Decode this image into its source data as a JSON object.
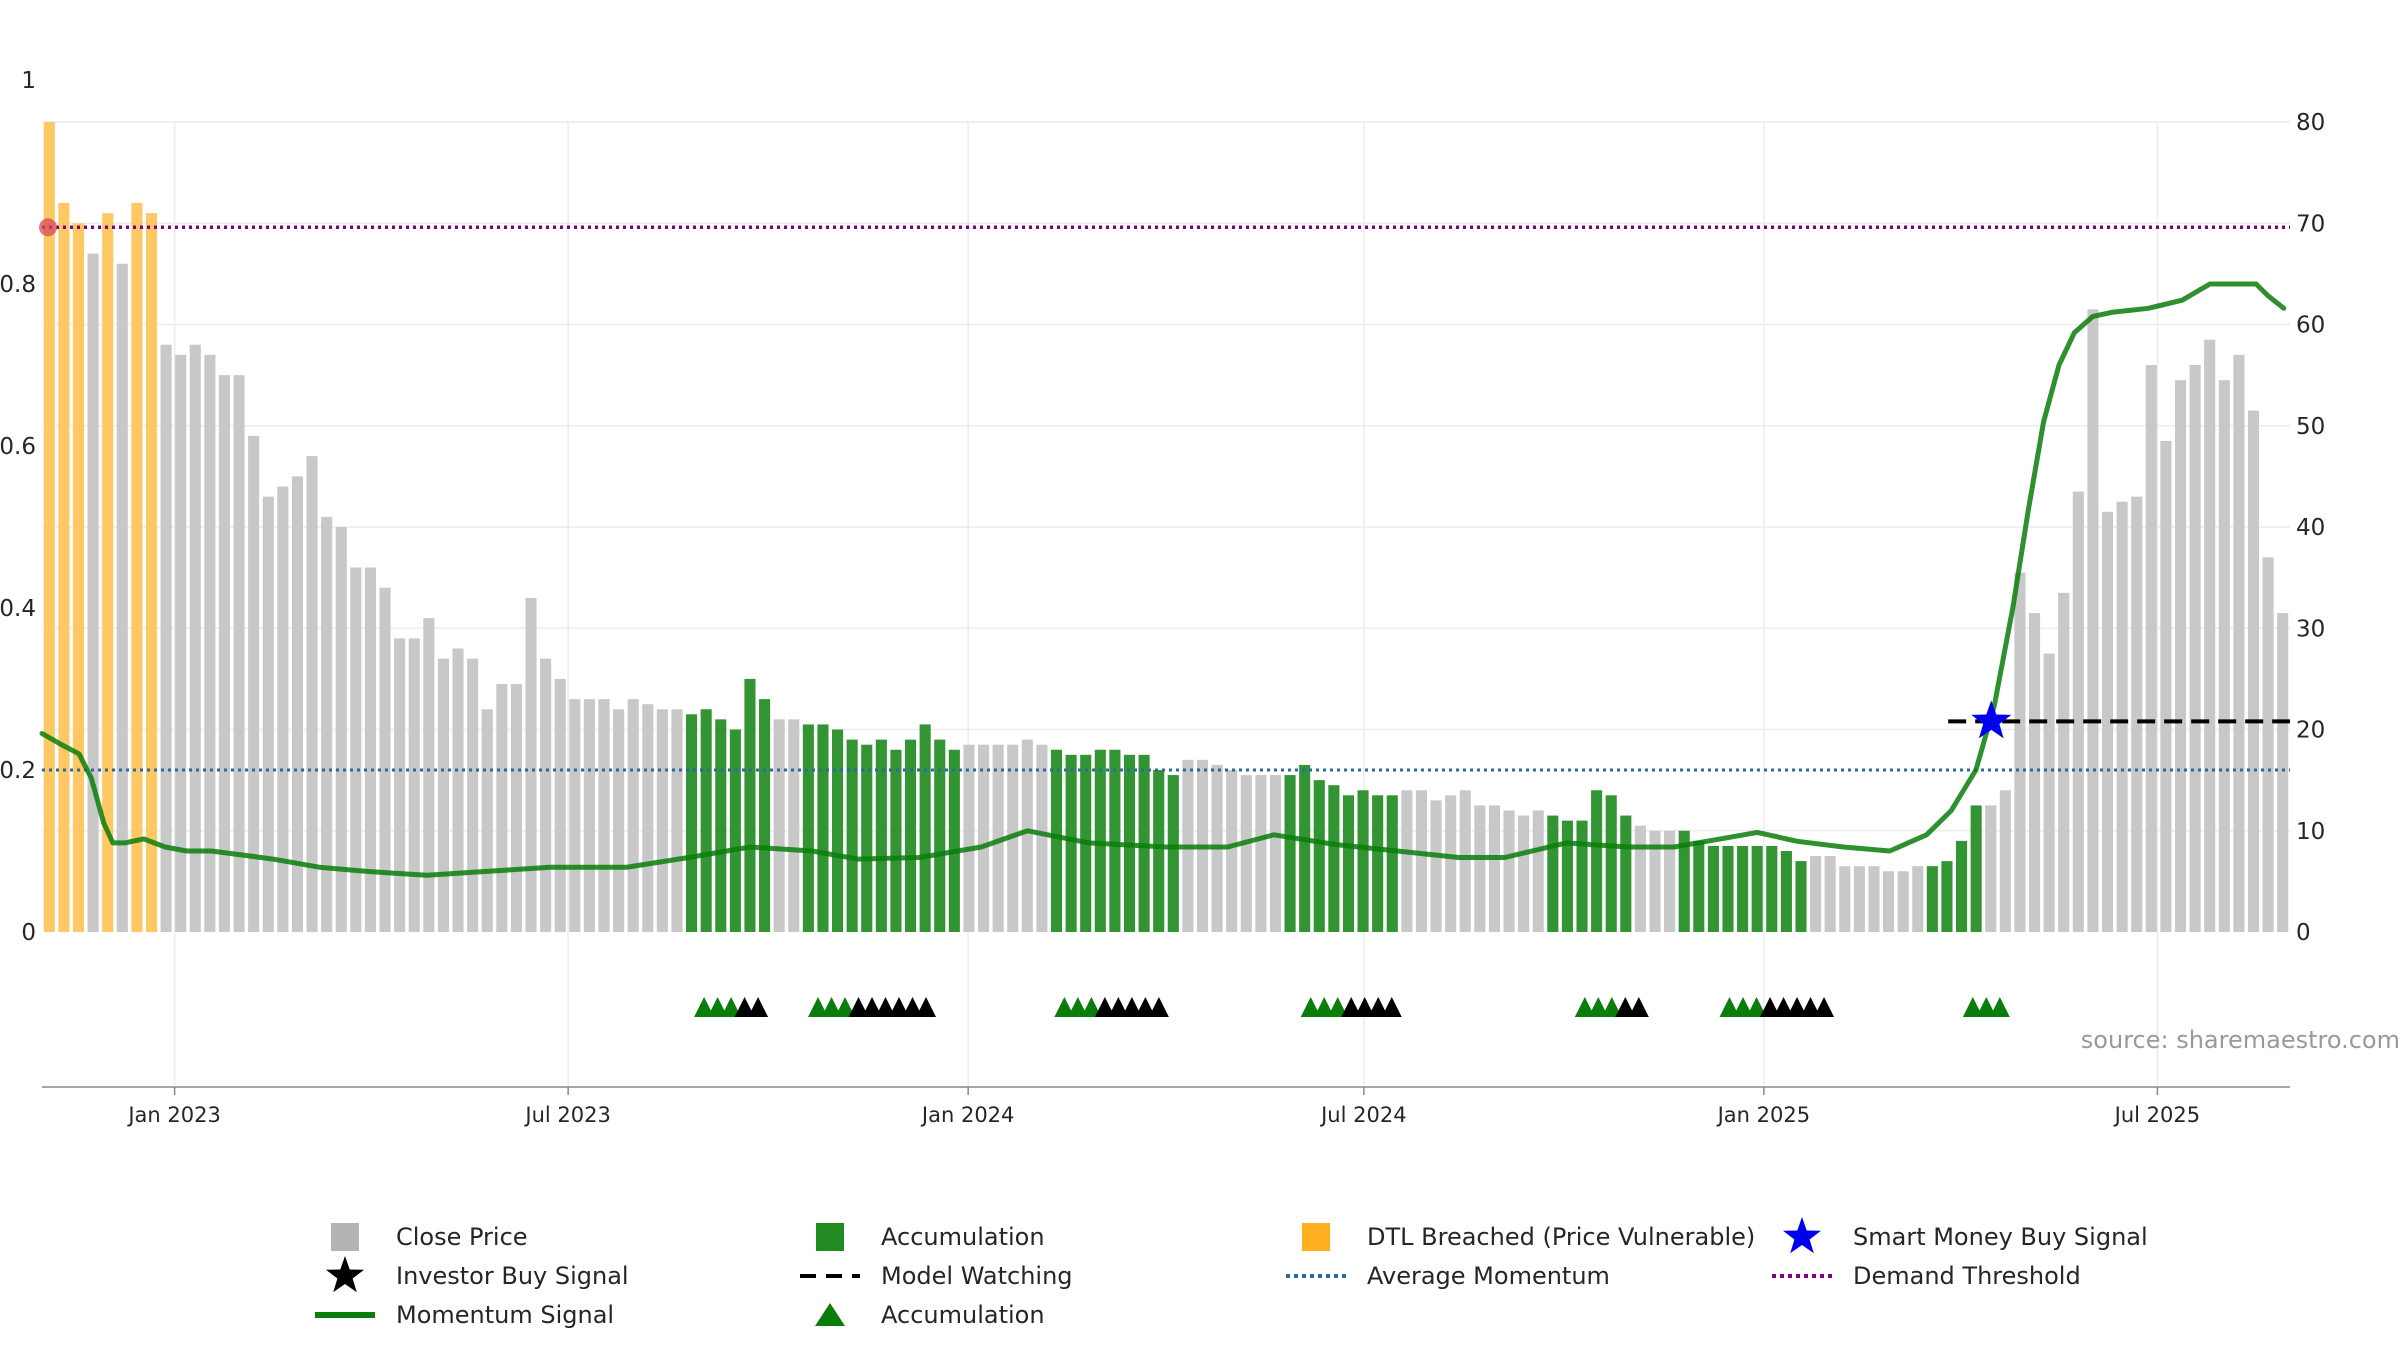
{
  "chart_data": {
    "type": "bar",
    "source_text": "source: sharemaestro.com",
    "left_axis": {
      "min": 0,
      "max": 1,
      "ticks": [
        {
          "v": 0,
          "label": "0"
        },
        {
          "v": 0.2,
          "label": "0.2"
        },
        {
          "v": 0.4,
          "label": "0.4"
        },
        {
          "v": 0.6,
          "label": "0.6"
        },
        {
          "v": 0.8,
          "label": "0.8"
        },
        {
          "v": 1,
          "label": "1"
        }
      ]
    },
    "right_axis": {
      "min": 0,
      "max": 80,
      "ticks": [
        {
          "v": 0,
          "label": "0"
        },
        {
          "v": 10,
          "label": "10"
        },
        {
          "v": 20,
          "label": "20"
        },
        {
          "v": 30,
          "label": "30"
        },
        {
          "v": 40,
          "label": "40"
        },
        {
          "v": 50,
          "label": "50"
        },
        {
          "v": 60,
          "label": "60"
        },
        {
          "v": 70,
          "label": "70"
        },
        {
          "v": 80,
          "label": "80"
        }
      ]
    },
    "x_ticks": [
      "Jan 2023",
      "Jul 2023",
      "Jan 2024",
      "Jul 2024",
      "Jan 2025",
      "Jul 2025"
    ],
    "grid": true,
    "colors": {
      "close": "#c8c8c8",
      "accumulation": "#228b22",
      "dtl": "#ffc864",
      "momentum": "#0a7d0a",
      "avg": "#2b6aa0",
      "demand": "#800080",
      "star": "#0000ee",
      "watch": "#000000"
    },
    "bars": [
      [
        80,
        "o"
      ],
      [
        72,
        "o"
      ],
      [
        70,
        "o"
      ],
      [
        67,
        "g"
      ],
      [
        71,
        "o"
      ],
      [
        66,
        "g"
      ],
      [
        72,
        "o"
      ],
      [
        71,
        "o"
      ],
      [
        58,
        "g"
      ],
      [
        57,
        "g"
      ],
      [
        58,
        "g"
      ],
      [
        57,
        "g"
      ],
      [
        55,
        "g"
      ],
      [
        55,
        "g"
      ],
      [
        49,
        "g"
      ],
      [
        43,
        "g"
      ],
      [
        44,
        "g"
      ],
      [
        45,
        "g"
      ],
      [
        47,
        "g"
      ],
      [
        41,
        "g"
      ],
      [
        40,
        "g"
      ],
      [
        36,
        "g"
      ],
      [
        36,
        "g"
      ],
      [
        34,
        "g"
      ],
      [
        29,
        "g"
      ],
      [
        29,
        "g"
      ],
      [
        31,
        "g"
      ],
      [
        27,
        "g"
      ],
      [
        28,
        "g"
      ],
      [
        27,
        "g"
      ],
      [
        22,
        "g"
      ],
      [
        24.5,
        "g"
      ],
      [
        24.5,
        "g"
      ],
      [
        33,
        "g"
      ],
      [
        27,
        "g"
      ],
      [
        25,
        "g"
      ],
      [
        23,
        "g"
      ],
      [
        23,
        "g"
      ],
      [
        23,
        "g"
      ],
      [
        22,
        "g"
      ],
      [
        23,
        "g"
      ],
      [
        22.5,
        "g"
      ],
      [
        22,
        "g"
      ],
      [
        22,
        "g"
      ],
      [
        21.5,
        "a"
      ],
      [
        22,
        "a"
      ],
      [
        21,
        "a"
      ],
      [
        20,
        "a"
      ],
      [
        25,
        "a"
      ],
      [
        23,
        "a"
      ],
      [
        21,
        "g"
      ],
      [
        21,
        "g"
      ],
      [
        20.5,
        "a"
      ],
      [
        20.5,
        "a"
      ],
      [
        20,
        "a"
      ],
      [
        19,
        "a"
      ],
      [
        18.5,
        "a"
      ],
      [
        19,
        "a"
      ],
      [
        18,
        "a"
      ],
      [
        19,
        "a"
      ],
      [
        20.5,
        "a"
      ],
      [
        19,
        "a"
      ],
      [
        18,
        "a"
      ],
      [
        18.5,
        "g"
      ],
      [
        18.5,
        "g"
      ],
      [
        18.5,
        "g"
      ],
      [
        18.5,
        "g"
      ],
      [
        19,
        "g"
      ],
      [
        18.5,
        "g"
      ],
      [
        18,
        "a"
      ],
      [
        17.5,
        "a"
      ],
      [
        17.5,
        "a"
      ],
      [
        18,
        "a"
      ],
      [
        18,
        "a"
      ],
      [
        17.5,
        "a"
      ],
      [
        17.5,
        "a"
      ],
      [
        16,
        "a"
      ],
      [
        15.5,
        "a"
      ],
      [
        17,
        "g"
      ],
      [
        17,
        "g"
      ],
      [
        16.5,
        "g"
      ],
      [
        16,
        "g"
      ],
      [
        15.5,
        "g"
      ],
      [
        15.5,
        "g"
      ],
      [
        15.5,
        "g"
      ],
      [
        15.5,
        "a"
      ],
      [
        16.5,
        "a"
      ],
      [
        15,
        "a"
      ],
      [
        14.5,
        "a"
      ],
      [
        13.5,
        "a"
      ],
      [
        14,
        "a"
      ],
      [
        13.5,
        "a"
      ],
      [
        13.5,
        "a"
      ],
      [
        14,
        "g"
      ],
      [
        14,
        "g"
      ],
      [
        13,
        "g"
      ],
      [
        13.5,
        "g"
      ],
      [
        14,
        "g"
      ],
      [
        12.5,
        "g"
      ],
      [
        12.5,
        "g"
      ],
      [
        12,
        "g"
      ],
      [
        11.5,
        "g"
      ],
      [
        12,
        "g"
      ],
      [
        11.5,
        "a"
      ],
      [
        11,
        "a"
      ],
      [
        11,
        "a"
      ],
      [
        14,
        "a"
      ],
      [
        13.5,
        "a"
      ],
      [
        11.5,
        "a"
      ],
      [
        10.5,
        "g"
      ],
      [
        10,
        "g"
      ],
      [
        10,
        "g"
      ],
      [
        10,
        "a"
      ],
      [
        9,
        "a"
      ],
      [
        8.5,
        "a"
      ],
      [
        8.5,
        "a"
      ],
      [
        8.5,
        "a"
      ],
      [
        8.5,
        "a"
      ],
      [
        8.5,
        "a"
      ],
      [
        8,
        "a"
      ],
      [
        7,
        "a"
      ],
      [
        7.5,
        "g"
      ],
      [
        7.5,
        "g"
      ],
      [
        6.5,
        "g"
      ],
      [
        6.5,
        "g"
      ],
      [
        6.5,
        "g"
      ],
      [
        6,
        "g"
      ],
      [
        6,
        "g"
      ],
      [
        6.5,
        "g"
      ],
      [
        6.5,
        "a"
      ],
      [
        7,
        "a"
      ],
      [
        9,
        "a"
      ],
      [
        12.5,
        "a"
      ],
      [
        12.5,
        "g"
      ],
      [
        14,
        "g"
      ],
      [
        35.5,
        "g"
      ],
      [
        31.5,
        "g"
      ],
      [
        27.5,
        "g"
      ],
      [
        33.5,
        "g"
      ],
      [
        43.5,
        "g"
      ],
      [
        61.5,
        "g"
      ],
      [
        41.5,
        "g"
      ],
      [
        42.5,
        "g"
      ],
      [
        43,
        "g"
      ],
      [
        56,
        "g"
      ],
      [
        48.5,
        "g"
      ],
      [
        54.5,
        "g"
      ],
      [
        56,
        "g"
      ],
      [
        58.5,
        "g"
      ],
      [
        54.5,
        "g"
      ],
      [
        57,
        "g"
      ],
      [
        51.5,
        "g"
      ],
      [
        37,
        "g"
      ],
      [
        31.5,
        "g"
      ]
    ],
    "momentum": [
      [
        0,
        0.245
      ],
      [
        6,
        0.232
      ],
      [
        12,
        0.22
      ],
      [
        16,
        0.19
      ],
      [
        20,
        0.135
      ],
      [
        23,
        0.11
      ],
      [
        27,
        0.11
      ],
      [
        33,
        0.115
      ],
      [
        40,
        0.105
      ],
      [
        47,
        0.1
      ],
      [
        55,
        0.1
      ],
      [
        65,
        0.095
      ],
      [
        75,
        0.09
      ],
      [
        90,
        0.08
      ],
      [
        105,
        0.075
      ],
      [
        125,
        0.07
      ],
      [
        145,
        0.075
      ],
      [
        165,
        0.08
      ],
      [
        190,
        0.08
      ],
      [
        210,
        0.092
      ],
      [
        230,
        0.105
      ],
      [
        250,
        0.1
      ],
      [
        265,
        0.09
      ],
      [
        285,
        0.092
      ],
      [
        305,
        0.105
      ],
      [
        320,
        0.125
      ],
      [
        340,
        0.11
      ],
      [
        365,
        0.105
      ],
      [
        385,
        0.105
      ],
      [
        400,
        0.12
      ],
      [
        420,
        0.108
      ],
      [
        440,
        0.1
      ],
      [
        460,
        0.092
      ],
      [
        475,
        0.092
      ],
      [
        495,
        0.11
      ],
      [
        515,
        0.105
      ],
      [
        530,
        0.105
      ],
      [
        545,
        0.115
      ],
      [
        557,
        0.123
      ],
      [
        570,
        0.112
      ],
      [
        585,
        0.105
      ],
      [
        600,
        0.1
      ],
      [
        612,
        0.12
      ],
      [
        620,
        0.15
      ],
      [
        628,
        0.2
      ],
      [
        634,
        0.28
      ],
      [
        640,
        0.4
      ],
      [
        645,
        0.52
      ],
      [
        650,
        0.63
      ],
      [
        655,
        0.7
      ],
      [
        660,
        0.74
      ],
      [
        666,
        0.76
      ],
      [
        672,
        0.765
      ],
      [
        684,
        0.77
      ],
      [
        695,
        0.78
      ],
      [
        704,
        0.8
      ],
      [
        712,
        0.8
      ],
      [
        719,
        0.8
      ],
      [
        723,
        0.785
      ],
      [
        728,
        0.77
      ]
    ],
    "series": [
      {
        "name": "Close Price",
        "marker": "square",
        "color": "#b4b4b4"
      },
      {
        "name": "Accumulation",
        "marker": "square",
        "color": "#228b22"
      },
      {
        "name": "DTL Breached (Price Vulnerable)",
        "marker": "square",
        "color": "#ffb020"
      },
      {
        "name": "Smart Money Buy Signal",
        "marker": "star",
        "color": "#0000ee"
      },
      {
        "name": "Investor Buy Signal",
        "marker": "star",
        "color": "#000000"
      },
      {
        "name": "Model Watching",
        "marker": "dash",
        "color": "#000000"
      },
      {
        "name": "Average Momentum",
        "marker": "dotted",
        "color": "#2b6aa0"
      },
      {
        "name": "Demand Threshold",
        "marker": "dotted",
        "color": "#800080"
      },
      {
        "name": "Momentum Signal",
        "marker": "line",
        "color": "#0a7d0a"
      },
      {
        "name": "Accumulation",
        "marker": "triangle",
        "color": "#0a7d0a"
      }
    ],
    "average_momentum": 0.2,
    "demand_threshold": 0.87,
    "smart_money_signal": {
      "x": 633,
      "y": 0.26
    },
    "model_watching": {
      "x_start": 619,
      "x_end": 730,
      "y": 0.26
    },
    "triangle_groups": [
      {
        "x": 215,
        "green": 3,
        "black": 2
      },
      {
        "x": 252,
        "green": 3,
        "black": 6
      },
      {
        "x": 332,
        "green": 3,
        "black": 5
      },
      {
        "x": 412,
        "green": 3,
        "black": 4
      },
      {
        "x": 501,
        "green": 3,
        "black": 2
      },
      {
        "x": 548,
        "green": 3,
        "black": 5
      },
      {
        "x": 627,
        "green": 3,
        "black": 0
      }
    ]
  }
}
